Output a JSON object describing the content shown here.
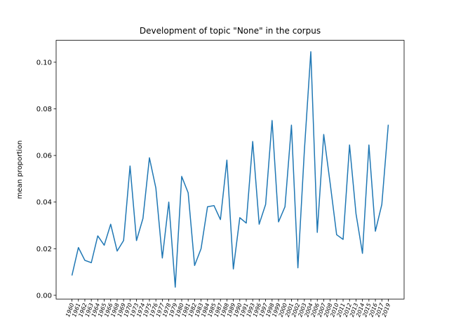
{
  "chart_data": {
    "type": "line",
    "title": "Development of topic \"None\" in the corpus",
    "ylabel": "mean proportion",
    "categories": [
      "1960",
      "1961",
      "1962",
      "1963",
      "1964",
      "1965",
      "1966",
      "1968",
      "1969",
      "1970",
      "1973",
      "1974",
      "1975",
      "1976",
      "1977",
      "1978",
      "1979",
      "1980",
      "1981",
      "1982",
      "1983",
      "1984",
      "1985",
      "1987",
      "1988",
      "1989",
      "1990",
      "1991",
      "1993",
      "1996",
      "1997",
      "1998",
      "1999",
      "2000",
      "2001",
      "2002",
      "2003",
      "2004",
      "2006",
      "2007",
      "2008",
      "2010",
      "2011",
      "2012",
      "2013",
      "2014",
      "2015",
      "2016",
      "2017",
      "2019"
    ],
    "series": [
      {
        "name": "mean proportion",
        "color": "#1f77b4",
        "values": [
          0.0085,
          0.0205,
          0.015,
          0.014,
          0.0255,
          0.0215,
          0.0305,
          0.019,
          0.0235,
          0.0555,
          0.0235,
          0.033,
          0.059,
          0.046,
          0.016,
          0.04,
          0.0035,
          0.051,
          0.044,
          0.0128,
          0.02,
          0.038,
          0.0385,
          0.0325,
          0.058,
          0.0113,
          0.0333,
          0.031,
          0.066,
          0.0305,
          0.039,
          0.075,
          0.0315,
          0.038,
          0.073,
          0.0118,
          0.062,
          0.1045,
          0.027,
          0.069,
          0.048,
          0.026,
          0.024,
          0.0645,
          0.035,
          0.018,
          0.0645,
          0.0275,
          0.039,
          0.0732
        ]
      }
    ],
    "ylim": [
      -0.0016,
      0.1094
    ],
    "yticks": [
      {
        "value": 0,
        "label": "0.00"
      },
      {
        "value": 0.02,
        "label": "0.02"
      },
      {
        "value": 0.04,
        "label": "0.04"
      },
      {
        "value": 0.06,
        "label": "0.06"
      },
      {
        "value": 0.08,
        "label": "0.08"
      },
      {
        "value": 0.1,
        "label": "0.10"
      }
    ],
    "grid": false
  }
}
